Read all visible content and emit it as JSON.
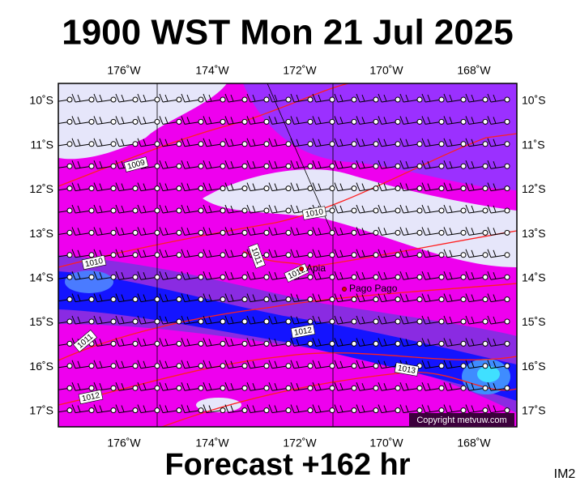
{
  "header": {
    "title": "1900 WST Mon 21 Jul 2025"
  },
  "map": {
    "lon_labels": [
      "176˚W",
      "174˚W",
      "172˚W",
      "170˚W",
      "168˚W"
    ],
    "lat_labels": [
      "10˚S",
      "11˚S",
      "12˚S",
      "13˚S",
      "14˚S",
      "15˚S",
      "16˚S",
      "17˚S"
    ],
    "contour_labels": [
      "1009",
      "1010",
      "1010",
      "1011",
      "1012",
      "1012",
      "1011",
      "1013",
      "1012"
    ],
    "places": [
      "Apia",
      "Pago Pago"
    ],
    "copyright": "Copyright metvuw.com"
  },
  "footer": {
    "forecast": "Forecast +162 hr",
    "code": "IM2"
  }
}
